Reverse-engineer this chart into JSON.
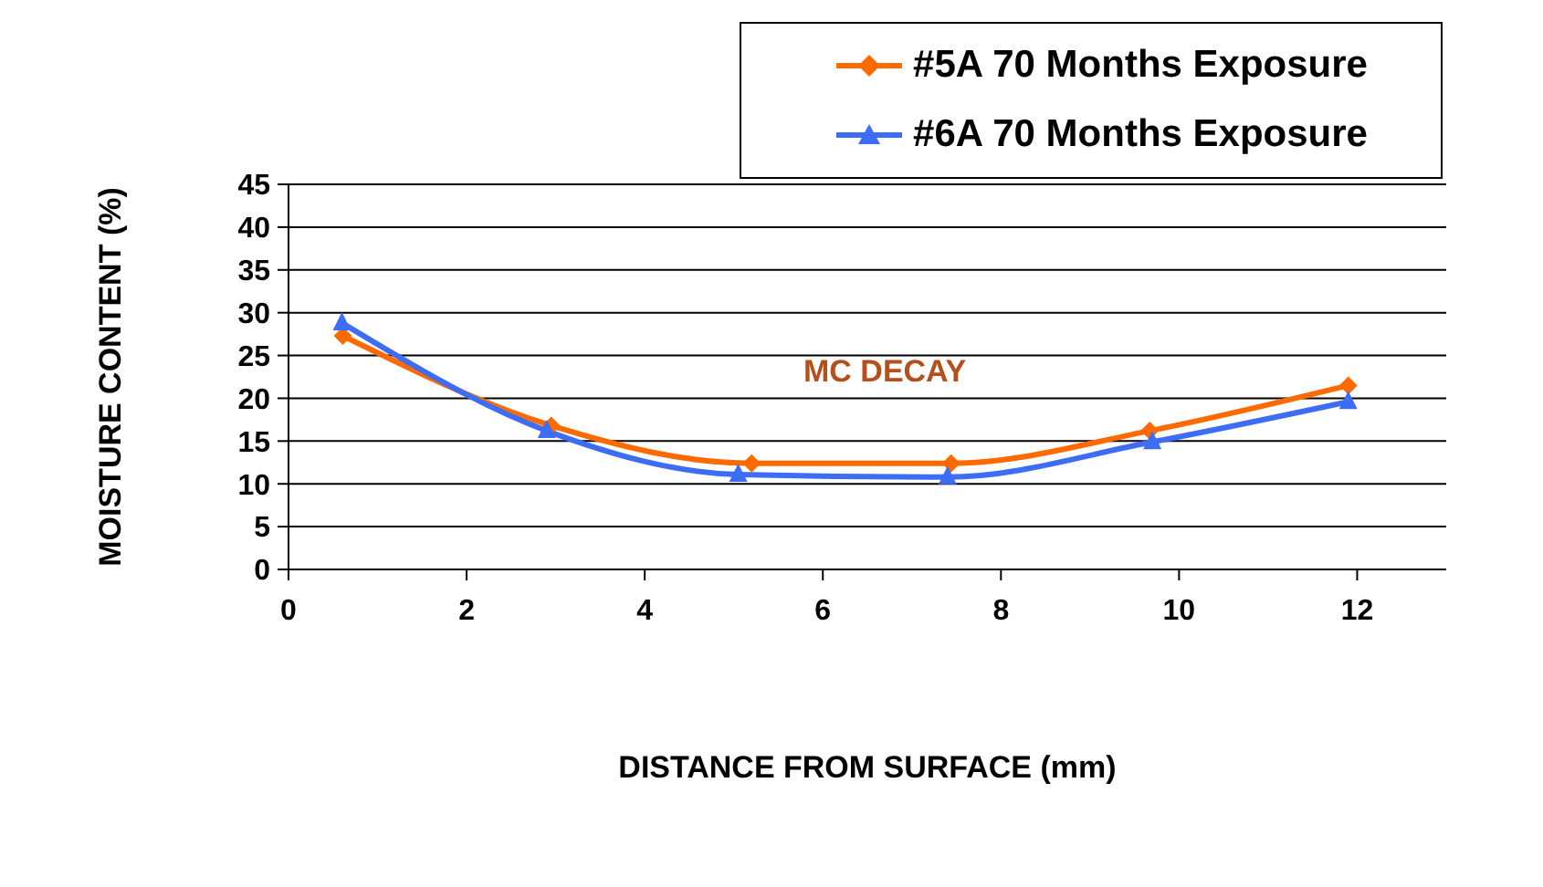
{
  "chart_data": {
    "type": "line",
    "xlabel": "DISTANCE FROM SURFACE (mm)",
    "ylabel": "MOISTURE CONTENT (%)",
    "annotations": [
      "MC DECAY"
    ],
    "xlim": [
      0,
      13
    ],
    "xticks": [
      0,
      2,
      4,
      6,
      8,
      10,
      12
    ],
    "ylim": [
      0,
      45
    ],
    "yticks": [
      0,
      5,
      10,
      15,
      20,
      25,
      30,
      35,
      40,
      45
    ],
    "grid": "y",
    "legend": "top right",
    "series": [
      {
        "name": "#5A 70 Months Exposure",
        "color": "#ff6a00",
        "marker": "diamond",
        "x": [
          0.61,
          2.95,
          5.2,
          7.44,
          9.67,
          11.9
        ],
        "values": [
          27.3,
          16.8,
          12.4,
          12.4,
          16.2,
          21.5
        ]
      },
      {
        "name": "#6A 70 Months Exposure",
        "color": "#3d6cf5",
        "marker": "triangle",
        "x": [
          0.6,
          2.9,
          5.05,
          7.4,
          9.7,
          11.9
        ],
        "values": [
          28.8,
          16.2,
          11.1,
          10.8,
          14.9,
          19.6
        ]
      }
    ]
  }
}
